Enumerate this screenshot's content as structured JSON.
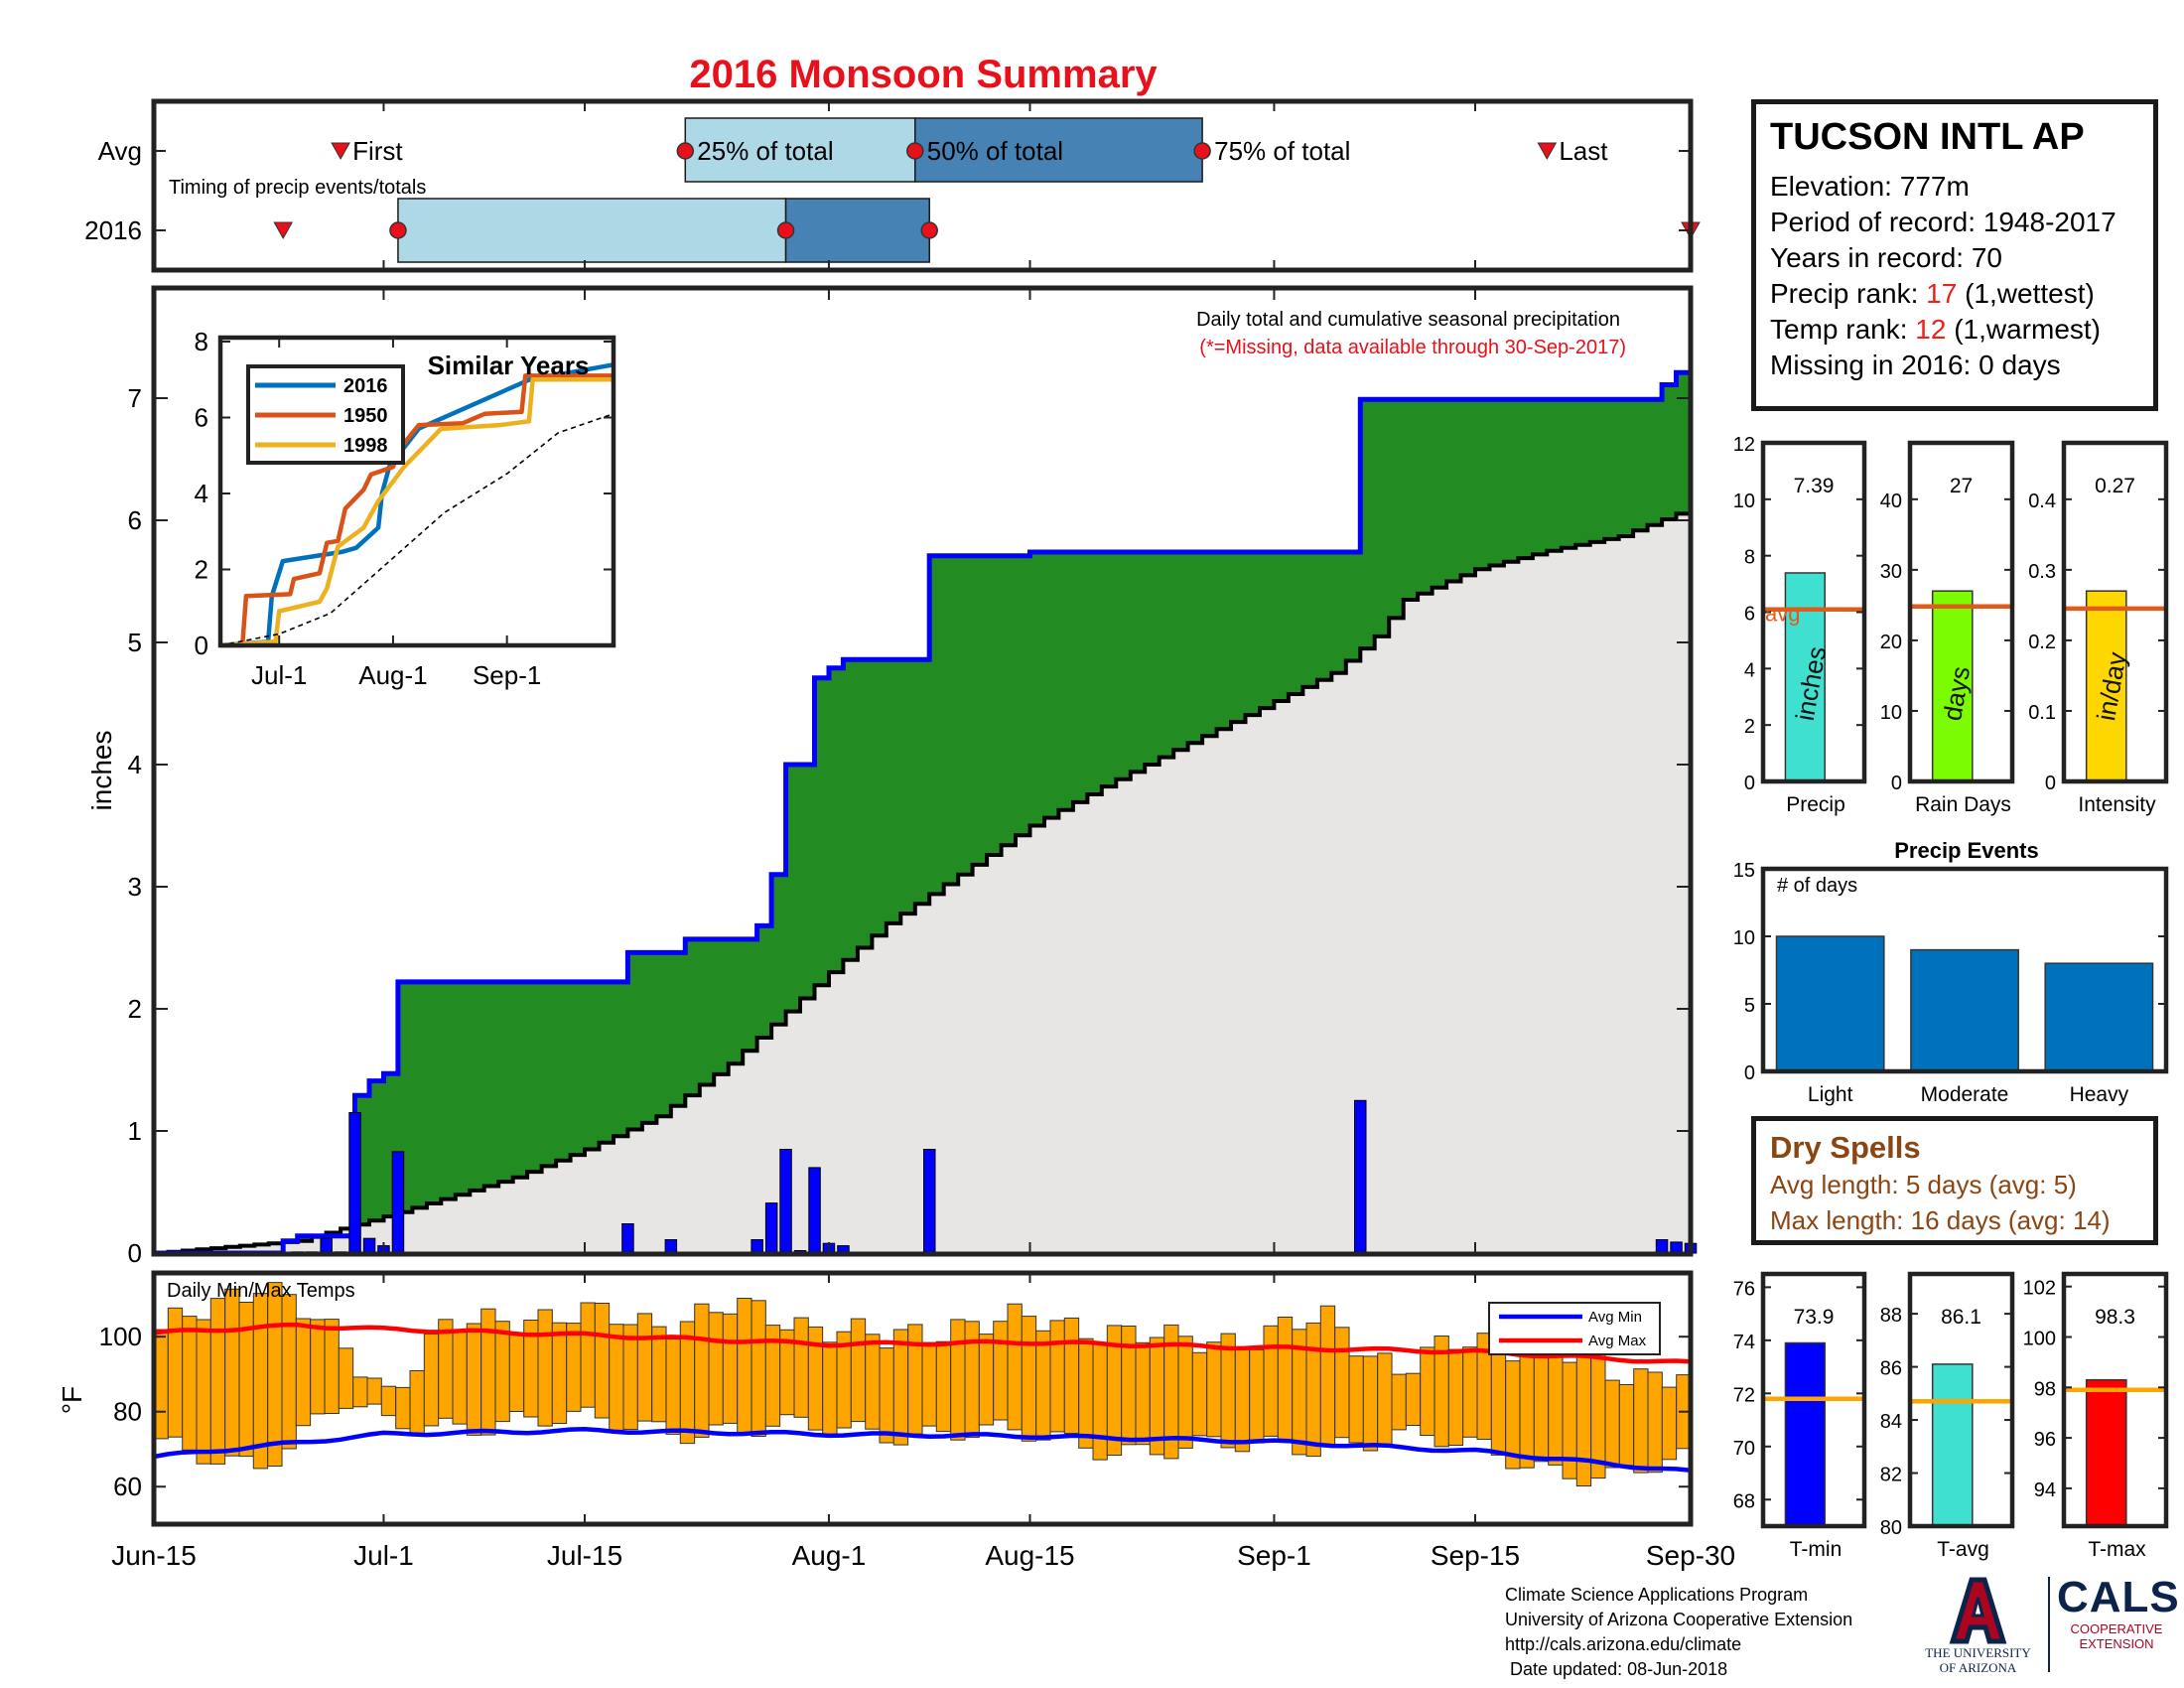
{
  "title": "2016 Monsoon Summary",
  "station": {
    "name": "TUCSON INTL AP",
    "elevation_label": "Elevation: ",
    "elevation": "777m",
    "period_label": "Period of record: ",
    "period": "1948-2017",
    "years_label": "Years in record: ",
    "years": "70",
    "precip_rank_label": "Precip rank: ",
    "precip_rank": "17",
    "precip_rank_note": " (1,wettest)",
    "temp_rank_label": "Temp rank: ",
    "temp_rank": "12",
    "temp_rank_note": " (1,warmest)",
    "missing_label": "Missing in 2016: ",
    "missing": "0 days"
  },
  "dry_spells": {
    "title": "Dry Spells",
    "avg_label": "Avg length: ",
    "avg": "5 days (avg: 5)",
    "max_label": "Max length: ",
    "max": "16 days (avg: 14)"
  },
  "credits": {
    "line1": "Climate Science Applications Program",
    "line2": "University of Arizona Cooperative Extension",
    "line3": "http://cals.arizona.edu/climate",
    "line4": " Date updated: 08-Jun-2018"
  },
  "logos": {
    "ua_letter": "A",
    "ua_line1": "THE UNIVERSITY",
    "ua_line2": "OF ARIZONA",
    "cals": "CALS",
    "cals_sub1": "COOPERATIVE",
    "cals_sub2": "EXTENSION"
  },
  "chart_data": [
    {
      "id": "timing",
      "type": "timeline",
      "annotation": "Timing of precip events/totals",
      "rows": [
        "Avg",
        "2016"
      ],
      "x_range": [
        "2016-06-15",
        "2016-09-30"
      ],
      "avg": {
        "first": "2016-06-28",
        "p25": "2016-07-22",
        "p50": "2016-08-07",
        "p75": "2016-08-27",
        "last": "2016-09-20",
        "labels": {
          "first": "First",
          "p25": "25% of total",
          "p50": "50% of total",
          "p75": "75% of total",
          "last": "Last"
        }
      },
      "year2016": {
        "first": "2016-06-24",
        "p25": "2016-07-02",
        "p50": "2016-07-29",
        "p75": "2016-08-08",
        "last": "2016-09-30"
      }
    },
    {
      "id": "precip",
      "type": "area",
      "annotation": "Daily total and cumulative seasonal precipitation",
      "note": "(*=Missing, data available through 30-Sep-2017)",
      "ylabel": "inches",
      "x_range": [
        "2016-06-15",
        "2016-09-30"
      ],
      "ylim": [
        0,
        7.8
      ],
      "yticks": [
        0,
        1,
        2,
        3,
        4,
        5,
        6,
        7
      ],
      "xtick_labels": [
        [
          "2016-06-15",
          "Jun-15"
        ],
        [
          "2016-07-01",
          "Jul-1"
        ],
        [
          "2016-07-15",
          "Jul-15"
        ],
        [
          "2016-08-01",
          "Aug-1"
        ],
        [
          "2016-08-15",
          "Aug-15"
        ],
        [
          "2016-09-01",
          "Sep-1"
        ],
        [
          "2016-09-15",
          "Sep-15"
        ],
        [
          "2016-09-30",
          "Sep-30"
        ]
      ],
      "daily_precip": [
        [
          "2016-06-25",
          0.01
        ],
        [
          "2016-06-26",
          0.01
        ],
        [
          "2016-06-27",
          0.12
        ],
        [
          "2016-06-28",
          0.01
        ],
        [
          "2016-06-29",
          1.15
        ],
        [
          "2016-06-30",
          0.12
        ],
        [
          "2016-07-01",
          0.06
        ],
        [
          "2016-07-02",
          0.83
        ],
        [
          "2016-07-18",
          0.24
        ],
        [
          "2016-07-21",
          0.11
        ],
        [
          "2016-07-27",
          0.11
        ],
        [
          "2016-07-28",
          0.41
        ],
        [
          "2016-07-29",
          0.85
        ],
        [
          "2016-07-30",
          0.02
        ],
        [
          "2016-07-31",
          0.7
        ],
        [
          "2016-08-01",
          0.08
        ],
        [
          "2016-08-02",
          0.06
        ],
        [
          "2016-08-08",
          0.85
        ],
        [
          "2016-09-07",
          1.25
        ],
        [
          "2016-09-28",
          0.11
        ],
        [
          "2016-09-29",
          0.09
        ],
        [
          "2016-09-30",
          0.08
        ]
      ],
      "cumulative_2016": [
        [
          "2016-06-15",
          0
        ],
        [
          "2016-06-24",
          0.1
        ],
        [
          "2016-06-25",
          0.14
        ],
        [
          "2016-06-28",
          0.14
        ],
        [
          "2016-06-29",
          1.29
        ],
        [
          "2016-06-30",
          1.41
        ],
        [
          "2016-07-01",
          1.47
        ],
        [
          "2016-07-02",
          2.22
        ],
        [
          "2016-07-18",
          2.46
        ],
        [
          "2016-07-22",
          2.57
        ],
        [
          "2016-07-27",
          2.68
        ],
        [
          "2016-07-28",
          3.1
        ],
        [
          "2016-07-29",
          4.0
        ],
        [
          "2016-07-31",
          4.71
        ],
        [
          "2016-08-01",
          4.79
        ],
        [
          "2016-08-02",
          4.86
        ],
        [
          "2016-08-08",
          5.71
        ],
        [
          "2016-08-15",
          5.74
        ],
        [
          "2016-09-07",
          6.99
        ],
        [
          "2016-09-28",
          7.11
        ],
        [
          "2016-09-29",
          7.21
        ],
        [
          "2016-09-30",
          7.39
        ]
      ],
      "cumulative_avg": [
        [
          "2016-06-15",
          0
        ],
        [
          "2016-06-25",
          0.1
        ],
        [
          "2016-07-01",
          0.3
        ],
        [
          "2016-07-10",
          0.62
        ],
        [
          "2016-07-15",
          0.85
        ],
        [
          "2016-07-20",
          1.12
        ],
        [
          "2016-07-25",
          1.55
        ],
        [
          "2016-08-01",
          2.3
        ],
        [
          "2016-08-05",
          2.7
        ],
        [
          "2016-08-10",
          3.1
        ],
        [
          "2016-08-15",
          3.5
        ],
        [
          "2016-08-20",
          3.82
        ],
        [
          "2016-08-25",
          4.12
        ],
        [
          "2016-09-01",
          4.52
        ],
        [
          "2016-09-05",
          4.75
        ],
        [
          "2016-09-08",
          5.05
        ],
        [
          "2016-09-10",
          5.35
        ],
        [
          "2016-09-15",
          5.6
        ],
        [
          "2016-09-20",
          5.75
        ],
        [
          "2016-09-25",
          5.87
        ],
        [
          "2016-09-30",
          6.1
        ]
      ],
      "colors": {
        "observed": "#0000ff",
        "above_avg_fill": "#228b22",
        "avg_fill": "#e8e6e4",
        "avg_line": "#000000",
        "daily_bar": "#0000ff"
      }
    },
    {
      "id": "similar_years",
      "type": "line",
      "title": "Similar Years",
      "x_range": [
        "2016-06-15",
        "2016-09-30"
      ],
      "ylim": [
        0,
        8
      ],
      "yticks": [
        0,
        2,
        4,
        6,
        8
      ],
      "xtick_labels": [
        [
          "2016-07-01",
          "Jul-1"
        ],
        [
          "2016-08-01",
          "Aug-1"
        ],
        [
          "2016-09-01",
          "Sep-1"
        ]
      ],
      "series": [
        {
          "name": "2016",
          "color": "#0072bd",
          "points": [
            [
              "2016-06-15",
              0
            ],
            [
              "2016-06-28",
              0.1
            ],
            [
              "2016-06-29",
              1.3
            ],
            [
              "2016-07-02",
              2.22
            ],
            [
              "2016-07-18",
              2.46
            ],
            [
              "2016-07-22",
              2.57
            ],
            [
              "2016-07-28",
              3.1
            ],
            [
              "2016-07-29",
              4.0
            ],
            [
              "2016-07-31",
              4.71
            ],
            [
              "2016-08-08",
              5.71
            ],
            [
              "2016-09-07",
              6.99
            ],
            [
              "2016-09-30",
              7.39
            ]
          ]
        },
        {
          "name": "1950",
          "color": "#d95319",
          "points": [
            [
              "2016-06-15",
              0
            ],
            [
              "2016-06-21",
              0
            ],
            [
              "2016-06-22",
              1.3
            ],
            [
              "2016-07-04",
              1.35
            ],
            [
              "2016-07-05",
              1.75
            ],
            [
              "2016-07-12",
              1.9
            ],
            [
              "2016-07-14",
              2.7
            ],
            [
              "2016-07-17",
              2.75
            ],
            [
              "2016-07-19",
              3.6
            ],
            [
              "2016-07-24",
              4.1
            ],
            [
              "2016-07-26",
              4.5
            ],
            [
              "2016-08-01",
              4.7
            ],
            [
              "2016-08-03",
              5.2
            ],
            [
              "2016-08-08",
              5.8
            ],
            [
              "2016-08-20",
              5.85
            ],
            [
              "2016-08-26",
              6.1
            ],
            [
              "2016-09-05",
              6.15
            ],
            [
              "2016-09-06",
              7.1
            ],
            [
              "2016-09-30",
              7.1
            ]
          ]
        },
        {
          "name": "1998",
          "color": "#edb120",
          "points": [
            [
              "2016-06-15",
              0
            ],
            [
              "2016-06-30",
              0.1
            ],
            [
              "2016-07-01",
              0.9
            ],
            [
              "2016-07-12",
              1.15
            ],
            [
              "2016-07-14",
              1.5
            ],
            [
              "2016-07-17",
              2.6
            ],
            [
              "2016-07-24",
              3.1
            ],
            [
              "2016-07-28",
              3.8
            ],
            [
              "2016-08-04",
              4.7
            ],
            [
              "2016-08-10",
              5.3
            ],
            [
              "2016-08-14",
              5.7
            ],
            [
              "2016-08-30",
              5.8
            ],
            [
              "2016-09-07",
              5.9
            ],
            [
              "2016-09-08",
              7.0
            ],
            [
              "2016-09-30",
              7.0
            ]
          ]
        },
        {
          "name": "",
          "color": "#000000",
          "dashed": true,
          "points": [
            [
              "2016-06-15",
              0
            ],
            [
              "2016-07-01",
              0.3
            ],
            [
              "2016-07-15",
              0.85
            ],
            [
              "2016-08-01",
              2.3
            ],
            [
              "2016-08-15",
              3.5
            ],
            [
              "2016-09-01",
              4.52
            ],
            [
              "2016-09-15",
              5.6
            ],
            [
              "2016-09-30",
              6.1
            ]
          ]
        }
      ]
    },
    {
      "id": "temps",
      "type": "bar",
      "annotation": "Daily Min/Max Temps",
      "ylabel": "°F",
      "x_range": [
        "2016-06-15",
        "2016-09-30"
      ],
      "ylim": [
        50,
        117
      ],
      "yticks": [
        60,
        80,
        100
      ],
      "daily_max_anchors": [
        [
          "2016-06-15",
          100
        ],
        [
          "2016-06-20",
          112
        ],
        [
          "2016-06-22",
          115
        ],
        [
          "2016-06-25",
          106
        ],
        [
          "2016-06-28",
          97
        ],
        [
          "2016-07-01",
          86
        ],
        [
          "2016-07-05",
          101
        ],
        [
          "2016-07-10",
          106
        ],
        [
          "2016-07-20",
          104
        ],
        [
          "2016-07-25",
          107
        ],
        [
          "2016-08-01",
          103
        ],
        [
          "2016-08-05",
          98
        ],
        [
          "2016-08-10",
          104
        ],
        [
          "2016-08-20",
          103
        ],
        [
          "2016-08-25",
          98
        ],
        [
          "2016-09-01",
          101
        ],
        [
          "2016-09-05",
          104
        ],
        [
          "2016-09-10",
          92
        ],
        [
          "2016-09-15",
          98
        ],
        [
          "2016-09-20",
          99
        ],
        [
          "2016-09-25",
          89
        ],
        [
          "2016-09-30",
          92
        ]
      ],
      "daily_min_anchors": [
        [
          "2016-06-15",
          70
        ],
        [
          "2016-06-22",
          67
        ],
        [
          "2016-06-28",
          82
        ],
        [
          "2016-07-01",
          76
        ],
        [
          "2016-07-10",
          78
        ],
        [
          "2016-07-20",
          76
        ],
        [
          "2016-08-01",
          75
        ],
        [
          "2016-08-10",
          75
        ],
        [
          "2016-08-20",
          71
        ],
        [
          "2016-09-01",
          70
        ],
        [
          "2016-09-10",
          74
        ],
        [
          "2016-09-20",
          66
        ],
        [
          "2016-09-25",
          63
        ],
        [
          "2016-09-30",
          66
        ]
      ],
      "avg_min": [
        [
          "2016-06-15",
          68
        ],
        [
          "2016-07-01",
          74
        ],
        [
          "2016-07-15",
          75
        ],
        [
          "2016-08-01",
          74
        ],
        [
          "2016-08-15",
          73.5
        ],
        [
          "2016-09-01",
          72
        ],
        [
          "2016-09-15",
          69.5
        ],
        [
          "2016-09-30",
          64
        ]
      ],
      "avg_max": [
        [
          "2016-06-15",
          101
        ],
        [
          "2016-06-25",
          103
        ],
        [
          "2016-07-01",
          102
        ],
        [
          "2016-07-15",
          100.5
        ],
        [
          "2016-08-01",
          98
        ],
        [
          "2016-08-15",
          98.5
        ],
        [
          "2016-09-01",
          97
        ],
        [
          "2016-09-15",
          96
        ],
        [
          "2016-09-30",
          93
        ]
      ],
      "legend": [
        {
          "name": "Avg Min",
          "color": "#0000ff"
        },
        {
          "name": "Avg Max",
          "color": "#ff0000"
        }
      ],
      "colors": {
        "bar": "#ffa500"
      }
    },
    {
      "id": "precip_total",
      "type": "bar",
      "xlabel": "Precip",
      "bar_label": "inches",
      "value": 7.39,
      "avg": 6.1,
      "avg_label": "avg",
      "ylim": [
        0,
        12
      ],
      "yticks": [
        0,
        2,
        4,
        6,
        8,
        10,
        12
      ],
      "color": "#40e0d0"
    },
    {
      "id": "rain_days",
      "type": "bar",
      "xlabel": "Rain Days",
      "bar_label": "days",
      "value": 27,
      "avg": 24.8,
      "ylim": [
        0,
        48
      ],
      "yticks": [
        0,
        10,
        20,
        30,
        40
      ],
      "color": "#7cfc00"
    },
    {
      "id": "intensity",
      "type": "bar",
      "xlabel": "Intensity",
      "bar_label": "in/day",
      "value": 0.27,
      "avg": 0.245,
      "ylim": [
        0,
        0.48
      ],
      "yticks": [
        0,
        0.1,
        0.2,
        0.3,
        0.4
      ],
      "color": "#ffd700"
    },
    {
      "id": "precip_events",
      "type": "bar",
      "title": "Precip Events",
      "annotation": "# of days",
      "categories": [
        "Light",
        "Moderate",
        "Heavy"
      ],
      "values": [
        10,
        9,
        8
      ],
      "ylim": [
        0,
        15
      ],
      "yticks": [
        0,
        5,
        10,
        15
      ],
      "color": "#0072bd"
    },
    {
      "id": "tmin",
      "type": "bar",
      "xlabel": "T-min",
      "value": 73.9,
      "avg": 71.8,
      "ylim": [
        67,
        76.5
      ],
      "yticks": [
        68,
        70,
        72,
        74,
        76
      ],
      "color": "#0000ff"
    },
    {
      "id": "tavg",
      "type": "bar",
      "xlabel": "T-avg",
      "value": 86.1,
      "avg": 84.7,
      "ylim": [
        80,
        89.5
      ],
      "yticks": [
        80,
        82,
        84,
        86,
        88
      ],
      "color": "#40e0d0"
    },
    {
      "id": "tmax",
      "type": "bar",
      "xlabel": "T-max",
      "value": 98.3,
      "avg": 97.9,
      "ylim": [
        92.5,
        102.5
      ],
      "yticks": [
        94,
        96,
        98,
        100,
        102
      ],
      "color": "#ff0000"
    }
  ]
}
